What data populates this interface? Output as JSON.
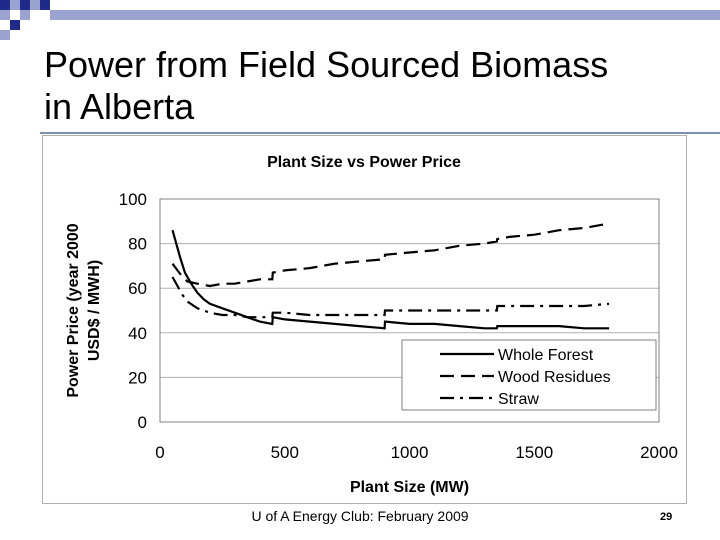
{
  "slide": {
    "title_line1": "Power from Field Sourced Biomass",
    "title_line2": "in Alberta",
    "footer": "U of A Energy Club: February 2009",
    "page_number": "29"
  },
  "colors": {
    "deco_dark": "#1f2a8a",
    "deco_light": "#9aa3cf",
    "plot_border": "#808080",
    "grid": "#b0b0b0",
    "line": "#000000"
  },
  "chart_data": {
    "type": "line",
    "title": "Plant Size vs Power Price",
    "xlabel": "Plant Size (MW)",
    "ylabel_line1": "Power Price (year 2000",
    "ylabel_line2": "USD$ / MWH)",
    "xlim": [
      0,
      2000
    ],
    "ylim": [
      0,
      100
    ],
    "xticks": [
      0,
      500,
      1000,
      1500,
      2000
    ],
    "yticks": [
      0,
      20,
      40,
      60,
      80,
      100
    ],
    "grid": "horizontal",
    "legend_position": "bottom-right",
    "series": [
      {
        "name": "Whole Forest",
        "style": "solid",
        "points": [
          [
            50,
            86
          ],
          [
            60,
            82
          ],
          [
            80,
            74
          ],
          [
            100,
            67
          ],
          [
            125,
            62
          ],
          [
            150,
            58
          ],
          [
            175,
            55
          ],
          [
            200,
            53
          ],
          [
            250,
            51
          ],
          [
            300,
            49
          ],
          [
            350,
            47
          ],
          [
            400,
            45
          ],
          [
            450,
            44
          ],
          [
            452,
            47
          ],
          [
            500,
            46
          ],
          [
            600,
            45
          ],
          [
            700,
            44
          ],
          [
            800,
            43
          ],
          [
            900,
            42
          ],
          [
            902,
            45
          ],
          [
            1000,
            44
          ],
          [
            1100,
            44
          ],
          [
            1200,
            43
          ],
          [
            1300,
            42
          ],
          [
            1350,
            42
          ],
          [
            1352,
            43
          ],
          [
            1450,
            43
          ],
          [
            1500,
            43
          ],
          [
            1600,
            43
          ],
          [
            1700,
            42
          ],
          [
            1800,
            42
          ]
        ]
      },
      {
        "name": "Wood Residues",
        "style": "dashed",
        "points": [
          [
            50,
            71
          ],
          [
            70,
            68
          ],
          [
            90,
            65
          ],
          [
            110,
            63
          ],
          [
            150,
            62
          ],
          [
            200,
            61
          ],
          [
            250,
            62
          ],
          [
            300,
            62
          ],
          [
            350,
            63
          ],
          [
            400,
            64
          ],
          [
            450,
            64
          ],
          [
            452,
            67
          ],
          [
            500,
            68
          ],
          [
            600,
            69
          ],
          [
            700,
            71
          ],
          [
            800,
            72
          ],
          [
            900,
            73
          ],
          [
            902,
            75
          ],
          [
            1000,
            76
          ],
          [
            1100,
            77
          ],
          [
            1200,
            79
          ],
          [
            1300,
            80
          ],
          [
            1350,
            81
          ],
          [
            1352,
            82
          ],
          [
            1400,
            83
          ],
          [
            1500,
            84
          ],
          [
            1600,
            86
          ],
          [
            1700,
            87
          ],
          [
            1800,
            89
          ]
        ]
      },
      {
        "name": "Straw",
        "style": "dashdot",
        "points": [
          [
            50,
            65
          ],
          [
            70,
            61
          ],
          [
            90,
            57
          ],
          [
            110,
            54
          ],
          [
            150,
            51
          ],
          [
            200,
            49
          ],
          [
            250,
            48
          ],
          [
            300,
            48
          ],
          [
            350,
            47
          ],
          [
            400,
            47
          ],
          [
            450,
            47
          ],
          [
            452,
            49
          ],
          [
            500,
            49
          ],
          [
            600,
            48
          ],
          [
            700,
            48
          ],
          [
            800,
            48
          ],
          [
            900,
            48
          ],
          [
            902,
            50
          ],
          [
            1000,
            50
          ],
          [
            1100,
            50
          ],
          [
            1200,
            50
          ],
          [
            1300,
            50
          ],
          [
            1350,
            50
          ],
          [
            1352,
            52
          ],
          [
            1400,
            52
          ],
          [
            1500,
            52
          ],
          [
            1600,
            52
          ],
          [
            1700,
            52
          ],
          [
            1800,
            53
          ]
        ]
      }
    ]
  }
}
